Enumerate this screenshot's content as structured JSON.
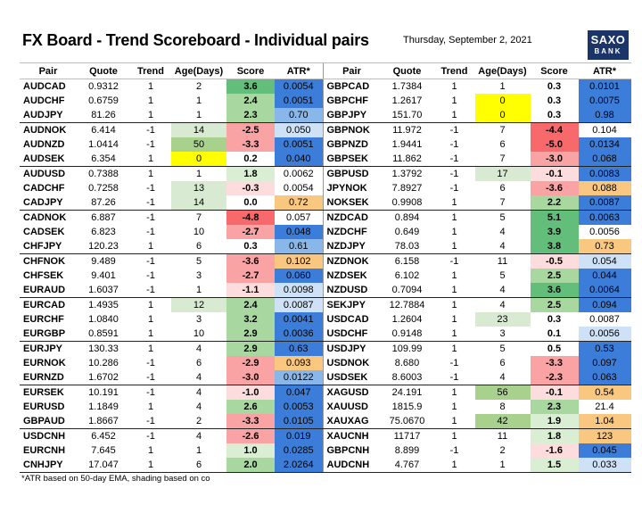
{
  "title": "FX Board - Trend Scoreboard - Individual pairs",
  "date": "Thursday, September 2, 2021",
  "logo": {
    "line1": "SAXO",
    "line2": "BANK"
  },
  "columns": [
    "Pair",
    "Quote",
    "Trend",
    "Age(Days)",
    "Score",
    "ATR*"
  ],
  "footnote": "*ATR based on 50-day EMA, shading based on co",
  "colors": {
    "score_pos_strong": "#63be7b",
    "score_pos_mid": "#a8d8a0",
    "score_pos_light": "#d9eed3",
    "score_neg_strong": "#f8696b",
    "score_neg_mid": "#f9a3a5",
    "score_neg_light": "#fcdcdd",
    "age_zero": "#ffff00",
    "age_high": "#a9d18e",
    "age_mid": "#d9ead3",
    "atr_dark": "#3b7dd8",
    "atr_mid": "#8ab7ea",
    "atr_light": "#cfe1f6",
    "atr_orange": "#f9c77f",
    "logo_bg": "#1c3568"
  },
  "left_rows": [
    {
      "pair": "AUDCAD",
      "quote": "0.9312",
      "trend": "1",
      "age": "2",
      "score": "3.6",
      "atr": "0.0054",
      "gs": "score_pos_strong",
      "ga": "",
      "gt": "atr_dark"
    },
    {
      "pair": "AUDCHF",
      "quote": "0.6759",
      "trend": "1",
      "age": "1",
      "score": "2.4",
      "atr": "0.0051",
      "gs": "score_pos_mid",
      "ga": "",
      "gt": "atr_dark"
    },
    {
      "pair": "AUDJPY",
      "quote": "81.26",
      "trend": "1",
      "age": "1",
      "score": "2.3",
      "atr": "0.70",
      "gs": "score_pos_mid",
      "ga": "",
      "gt": "atr_mid",
      "end": true
    },
    {
      "pair": "AUDNOK",
      "quote": "6.414",
      "trend": "-1",
      "age": "14",
      "score": "-2.5",
      "atr": "0.050",
      "gs": "score_neg_mid",
      "ga": "age_mid",
      "gt": "atr_light"
    },
    {
      "pair": "AUDNZD",
      "quote": "1.0414",
      "trend": "-1",
      "age": "50",
      "score": "-3.3",
      "atr": "0.0051",
      "gs": "score_neg_mid",
      "ga": "age_high",
      "gt": "atr_dark"
    },
    {
      "pair": "AUDSEK",
      "quote": "6.354",
      "trend": "1",
      "age": "0",
      "score": "0.2",
      "atr": "0.040",
      "gs": "",
      "ga": "age_zero",
      "gt": "atr_dark",
      "end": true
    },
    {
      "pair": "AUDUSD",
      "quote": "0.7388",
      "trend": "1",
      "age": "1",
      "score": "1.8",
      "atr": "0.0062",
      "gs": "score_pos_light",
      "ga": "",
      "gt": ""
    },
    {
      "pair": "CADCHF",
      "quote": "0.7258",
      "trend": "-1",
      "age": "13",
      "score": "-0.3",
      "atr": "0.0054",
      "gs": "score_neg_light",
      "ga": "age_mid",
      "gt": ""
    },
    {
      "pair": "CADJPY",
      "quote": "87.26",
      "trend": "-1",
      "age": "14",
      "score": "0.0",
      "atr": "0.72",
      "gs": "",
      "ga": "age_mid",
      "gt": "atr_orange",
      "end": true
    },
    {
      "pair": "CADNOK",
      "quote": "6.887",
      "trend": "-1",
      "age": "7",
      "score": "-4.8",
      "atr": "0.057",
      "gs": "score_neg_strong",
      "ga": "",
      "gt": ""
    },
    {
      "pair": "CADSEK",
      "quote": "6.823",
      "trend": "-1",
      "age": "10",
      "score": "-2.7",
      "atr": "0.048",
      "gs": "score_neg_mid",
      "ga": "",
      "gt": "atr_dark"
    },
    {
      "pair": "CHFJPY",
      "quote": "120.23",
      "trend": "1",
      "age": "6",
      "score": "0.3",
      "atr": "0.61",
      "gs": "",
      "ga": "",
      "gt": "atr_mid",
      "end": true
    },
    {
      "pair": "CHFNOK",
      "quote": "9.489",
      "trend": "-1",
      "age": "5",
      "score": "-3.6",
      "atr": "0.102",
      "gs": "score_neg_mid",
      "ga": "",
      "gt": "atr_orange"
    },
    {
      "pair": "CHFSEK",
      "quote": "9.401",
      "trend": "-1",
      "age": "3",
      "score": "-2.7",
      "atr": "0.060",
      "gs": "score_neg_mid",
      "ga": "",
      "gt": "atr_dark"
    },
    {
      "pair": "EURAUD",
      "quote": "1.6037",
      "trend": "-1",
      "age": "1",
      "score": "-1.1",
      "atr": "0.0098",
      "gs": "score_neg_light",
      "ga": "",
      "gt": "atr_light",
      "end": true
    },
    {
      "pair": "EURCAD",
      "quote": "1.4935",
      "trend": "1",
      "age": "12",
      "score": "2.4",
      "atr": "0.0087",
      "gs": "score_pos_mid",
      "ga": "age_mid",
      "gt": "atr_light"
    },
    {
      "pair": "EURCHF",
      "quote": "1.0840",
      "trend": "1",
      "age": "3",
      "score": "3.2",
      "atr": "0.0041",
      "gs": "score_pos_mid",
      "ga": "",
      "gt": "atr_dark"
    },
    {
      "pair": "EURGBP",
      "quote": "0.8591",
      "trend": "1",
      "age": "10",
      "score": "2.9",
      "atr": "0.0036",
      "gs": "score_pos_mid",
      "ga": "",
      "gt": "atr_dark",
      "end": true
    },
    {
      "pair": "EURJPY",
      "quote": "130.33",
      "trend": "1",
      "age": "4",
      "score": "2.9",
      "atr": "0.63",
      "gs": "score_pos_mid",
      "ga": "",
      "gt": "atr_dark"
    },
    {
      "pair": "EURNOK",
      "quote": "10.286",
      "trend": "-1",
      "age": "6",
      "score": "-2.9",
      "atr": "0.093",
      "gs": "score_neg_mid",
      "ga": "",
      "gt": "atr_orange"
    },
    {
      "pair": "EURNZD",
      "quote": "1.6702",
      "trend": "-1",
      "age": "4",
      "score": "-3.0",
      "atr": "0.0122",
      "gs": "score_neg_mid",
      "ga": "",
      "gt": "atr_mid",
      "end": true
    },
    {
      "pair": "EURSEK",
      "quote": "10.191",
      "trend": "-1",
      "age": "4",
      "score": "-1.0",
      "atr": "0.047",
      "gs": "score_neg_light",
      "ga": "",
      "gt": "atr_dark"
    },
    {
      "pair": "EURUSD",
      "quote": "1.1849",
      "trend": "1",
      "age": "4",
      "score": "2.6",
      "atr": "0.0053",
      "gs": "score_pos_mid",
      "ga": "",
      "gt": "atr_dark"
    },
    {
      "pair": "GBPAUD",
      "quote": "1.8667",
      "trend": "-1",
      "age": "2",
      "score": "-3.3",
      "atr": "0.0105",
      "gs": "score_neg_mid",
      "ga": "",
      "gt": "atr_dark",
      "end": true
    },
    {
      "pair": "USDCNH",
      "quote": "6.452",
      "trend": "-1",
      "age": "4",
      "score": "-2.6",
      "atr": "0.019",
      "gs": "score_neg_mid",
      "ga": "",
      "gt": "atr_dark"
    },
    {
      "pair": "EURCNH",
      "quote": "7.645",
      "trend": "1",
      "age": "1",
      "score": "1.0",
      "atr": "0.0285",
      "gs": "score_pos_light",
      "ga": "",
      "gt": "atr_dark"
    },
    {
      "pair": "CNHJPY",
      "quote": "17.047",
      "trend": "1",
      "age": "6",
      "score": "2.0",
      "atr": "2.0264",
      "gs": "score_pos_mid",
      "ga": "",
      "gt": "atr_dark",
      "end": true
    }
  ],
  "right_rows": [
    {
      "pair": "GBPCAD",
      "quote": "1.7384",
      "trend": "1",
      "age": "1",
      "score": "0.3",
      "atr": "0.0101",
      "gs": "",
      "ga": "",
      "gt": "atr_dark"
    },
    {
      "pair": "GBPCHF",
      "quote": "1.2617",
      "trend": "1",
      "age": "0",
      "score": "0.3",
      "atr": "0.0075",
      "gs": "",
      "ga": "age_zero",
      "gt": "atr_dark"
    },
    {
      "pair": "GBPJPY",
      "quote": "151.70",
      "trend": "1",
      "age": "0",
      "score": "0.3",
      "atr": "0.98",
      "gs": "",
      "ga": "age_zero",
      "gt": "atr_dark",
      "end": true
    },
    {
      "pair": "GBPNOK",
      "quote": "11.972",
      "trend": "-1",
      "age": "7",
      "score": "-4.4",
      "atr": "0.104",
      "gs": "score_neg_strong",
      "ga": "",
      "gt": ""
    },
    {
      "pair": "GBPNZD",
      "quote": "1.9441",
      "trend": "-1",
      "age": "6",
      "score": "-5.0",
      "atr": "0.0134",
      "gs": "score_neg_strong",
      "ga": "",
      "gt": "atr_dark"
    },
    {
      "pair": "GBPSEK",
      "quote": "11.862",
      "trend": "-1",
      "age": "7",
      "score": "-3.0",
      "atr": "0.068",
      "gs": "score_neg_mid",
      "ga": "",
      "gt": "atr_dark",
      "end": true
    },
    {
      "pair": "GBPUSD",
      "quote": "1.3792",
      "trend": "-1",
      "age": "17",
      "score": "-0.1",
      "atr": "0.0083",
      "gs": "score_neg_light",
      "ga": "age_mid",
      "gt": "atr_dark"
    },
    {
      "pair": "JPYNOK",
      "quote": "7.8927",
      "trend": "-1",
      "age": "6",
      "score": "-3.6",
      "atr": "0.088",
      "gs": "score_neg_mid",
      "ga": "",
      "gt": "atr_orange"
    },
    {
      "pair": "NOKSEK",
      "quote": "0.9908",
      "trend": "1",
      "age": "7",
      "score": "2.2",
      "atr": "0.0087",
      "gs": "score_pos_mid",
      "ga": "",
      "gt": "atr_dark",
      "end": true
    },
    {
      "pair": "NZDCAD",
      "quote": "0.894",
      "trend": "1",
      "age": "5",
      "score": "5.1",
      "atr": "0.0063",
      "gs": "score_pos_strong",
      "ga": "",
      "gt": "atr_dark"
    },
    {
      "pair": "NZDCHF",
      "quote": "0.649",
      "trend": "1",
      "age": "4",
      "score": "3.9",
      "atr": "0.0056",
      "gs": "score_pos_strong",
      "ga": "",
      "gt": ""
    },
    {
      "pair": "NZDJPY",
      "quote": "78.03",
      "trend": "1",
      "age": "4",
      "score": "3.8",
      "atr": "0.73",
      "gs": "score_pos_strong",
      "ga": "",
      "gt": "atr_orange",
      "end": true
    },
    {
      "pair": "NZDNOK",
      "quote": "6.158",
      "trend": "-1",
      "age": "11",
      "score": "-0.5",
      "atr": "0.054",
      "gs": "score_neg_light",
      "ga": "",
      "gt": "atr_light"
    },
    {
      "pair": "NZDSEK",
      "quote": "6.102",
      "trend": "1",
      "age": "5",
      "score": "2.5",
      "atr": "0.044",
      "gs": "score_pos_mid",
      "ga": "",
      "gt": "atr_dark"
    },
    {
      "pair": "NZDUSD",
      "quote": "0.7094",
      "trend": "1",
      "age": "4",
      "score": "3.6",
      "atr": "0.0064",
      "gs": "score_pos_strong",
      "ga": "",
      "gt": "atr_dark",
      "end": true
    },
    {
      "pair": "SEKJPY",
      "quote": "12.7884",
      "trend": "1",
      "age": "4",
      "score": "2.5",
      "atr": "0.094",
      "gs": "score_pos_mid",
      "ga": "",
      "gt": "atr_dark"
    },
    {
      "pair": "USDCAD",
      "quote": "1.2604",
      "trend": "1",
      "age": "23",
      "score": "0.3",
      "atr": "0.0087",
      "gs": "",
      "ga": "age_mid",
      "gt": ""
    },
    {
      "pair": "USDCHF",
      "quote": "0.9148",
      "trend": "1",
      "age": "3",
      "score": "0.1",
      "atr": "0.0056",
      "gs": "",
      "ga": "",
      "gt": "atr_light",
      "end": true
    },
    {
      "pair": "USDJPY",
      "quote": "109.99",
      "trend": "1",
      "age": "5",
      "score": "0.5",
      "atr": "0.53",
      "gs": "",
      "ga": "",
      "gt": "atr_dark"
    },
    {
      "pair": "USDNOK",
      "quote": "8.680",
      "trend": "-1",
      "age": "6",
      "score": "-3.3",
      "atr": "0.097",
      "gs": "score_neg_mid",
      "ga": "",
      "gt": "atr_dark"
    },
    {
      "pair": "USDSEK",
      "quote": "8.6003",
      "trend": "-1",
      "age": "4",
      "score": "-2.3",
      "atr": "0.063",
      "gs": "score_neg_mid",
      "ga": "",
      "gt": "atr_dark",
      "end": true
    },
    {
      "pair": "XAGUSD",
      "quote": "24.191",
      "trend": "1",
      "age": "56",
      "score": "-0.1",
      "atr": "0.54",
      "gs": "score_neg_light",
      "ga": "age_high",
      "gt": "atr_orange"
    },
    {
      "pair": "XAUUSD",
      "quote": "1815.9",
      "trend": "1",
      "age": "8",
      "score": "2.3",
      "atr": "21.4",
      "gs": "score_pos_mid",
      "ga": "",
      "gt": ""
    },
    {
      "pair": "XAUXAG",
      "quote": "75.0670",
      "trend": "1",
      "age": "42",
      "score": "1.9",
      "atr": "1.04",
      "gs": "score_pos_light",
      "ga": "age_high",
      "gt": "atr_orange",
      "end": true
    },
    {
      "pair": "XAUCNH",
      "quote": "11717",
      "trend": "1",
      "age": "11",
      "score": "1.8",
      "atr": "123",
      "gs": "score_pos_light",
      "ga": "",
      "gt": "atr_orange"
    },
    {
      "pair": "GBPCNH",
      "quote": "8.899",
      "trend": "-1",
      "age": "2",
      "score": "-1.6",
      "atr": "0.045",
      "gs": "score_neg_light",
      "ga": "",
      "gt": "atr_dark"
    },
    {
      "pair": "AUDCNH",
      "quote": "4.767",
      "trend": "1",
      "age": "1",
      "score": "1.5",
      "atr": "0.033",
      "gs": "score_pos_light",
      "ga": "",
      "gt": "atr_light",
      "end": true
    }
  ]
}
